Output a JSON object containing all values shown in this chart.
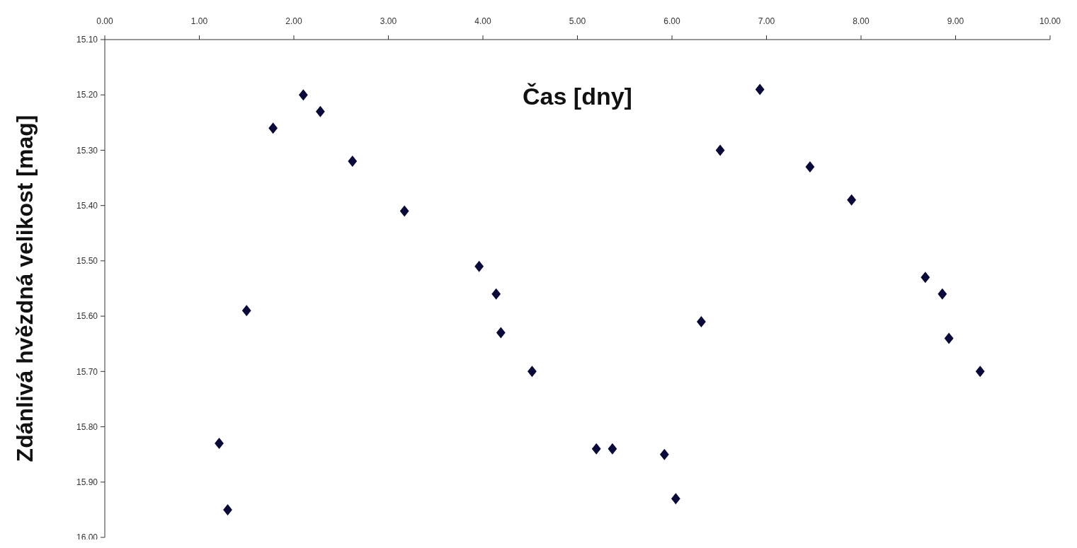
{
  "chart_data": {
    "type": "scatter",
    "xlabel": "Čas [dny]",
    "ylabel": "Zdánlivá hvězdná velikost [mag]",
    "x": [
      1.21,
      1.3,
      1.5,
      1.78,
      2.1,
      2.28,
      2.62,
      3.17,
      3.96,
      4.14,
      4.19,
      4.52,
      5.2,
      5.37,
      5.92,
      6.04,
      6.31,
      6.51,
      6.93,
      7.46,
      7.9,
      8.68,
      8.86,
      8.93,
      9.26
    ],
    "series": [
      {
        "color": "#0a0a3a",
        "values": [
          15.83,
          15.95,
          15.59,
          15.26,
          15.2,
          15.23,
          15.32,
          15.41,
          15.51,
          15.56,
          15.63,
          15.7,
          15.84,
          15.84,
          15.85,
          15.93,
          15.61,
          15.3,
          15.19,
          15.33,
          15.39,
          15.53,
          15.56,
          15.64,
          15.7
        ]
      }
    ],
    "xlim": [
      0,
      10
    ],
    "xticks": [
      {
        "value": 0,
        "label": "0.00"
      },
      {
        "value": 1,
        "label": "1.00"
      },
      {
        "value": 2,
        "label": "2.00"
      },
      {
        "value": 3,
        "label": "3.00"
      },
      {
        "value": 4,
        "label": "4.00"
      },
      {
        "value": 5,
        "label": "5.00"
      },
      {
        "value": 6,
        "label": "6.00"
      },
      {
        "value": 7,
        "label": "7.00"
      },
      {
        "value": 8,
        "label": "8.00"
      },
      {
        "value": 9,
        "label": "9.00"
      },
      {
        "value": 10,
        "label": "10.00"
      }
    ],
    "ylim": [
      16.0,
      15.1
    ],
    "yticks": [
      {
        "value": 15.1,
        "label": "15.10"
      },
      {
        "value": 15.2,
        "label": "15.20"
      },
      {
        "value": 15.3,
        "label": "15.30"
      },
      {
        "value": 15.4,
        "label": "15.40"
      },
      {
        "value": 15.5,
        "label": "15.50"
      },
      {
        "value": 15.6,
        "label": "15.60"
      },
      {
        "value": 15.7,
        "label": "15.70"
      },
      {
        "value": 15.8,
        "label": "15.80"
      },
      {
        "value": 15.9,
        "label": "15.90"
      },
      {
        "value": 16.0,
        "label": "16.00"
      }
    ],
    "marker": "diamond",
    "grid": false
  }
}
